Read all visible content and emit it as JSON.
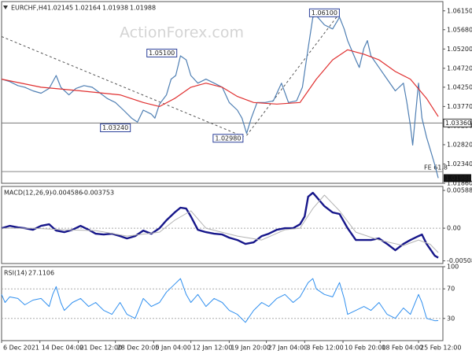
{
  "chart_data": [
    {
      "type": "line",
      "title": "EURCHF,H4",
      "header_values": [
        {
          "value": 1.02145,
          "label": "1.02145"
        },
        {
          "value": 1.02164,
          "label": "1.02164"
        },
        {
          "value": 1.01938,
          "label": "1.01938"
        },
        {
          "value": 1.01988,
          "label": "1.01988"
        }
      ],
      "watermark": "ActionForex.com",
      "xlim": [
        0,
        380
      ],
      "ylim": [
        1.0186,
        1.0638
      ],
      "yticks": [
        {
          "value": 1.0615,
          "label": "1.06150"
        },
        {
          "value": 1.0568,
          "label": "1.05680"
        },
        {
          "value": 1.052,
          "label": "1.05200"
        },
        {
          "value": 1.0472,
          "label": "1.04720"
        },
        {
          "value": 1.0425,
          "label": "1.04250"
        },
        {
          "value": 1.0377,
          "label": "1.03770"
        },
        {
          "value": 1.0329,
          "label": "1.03290"
        },
        {
          "value": 1.0282,
          "label": "1.02820"
        },
        {
          "value": 1.0234,
          "label": "1.02340"
        },
        {
          "value": 1.0186,
          "label": "1.01860"
        }
      ],
      "series": [
        {
          "color": "#4f7fb3",
          "width": 1.2,
          "x": [
            0,
            7,
            14,
            20,
            27,
            34,
            41,
            47,
            51,
            58,
            64,
            71,
            78,
            85,
            91,
            98,
            105,
            112,
            117,
            122,
            129,
            132,
            136,
            142,
            146,
            150,
            154,
            159,
            163,
            169,
            176,
            183,
            190,
            196,
            203,
            207,
            211,
            215,
            220,
            227,
            234,
            241,
            247,
            254,
            259,
            264,
            268,
            271,
            278,
            285,
            291,
            295,
            298,
            305,
            308,
            312,
            315,
            318,
            325,
            332,
            339,
            346,
            349,
            352,
            354,
            359,
            362,
            366,
            369,
            373,
            376
          ],
          "values": [
            1.0445,
            1.0439,
            1.0429,
            1.0425,
            1.0416,
            1.041,
            1.0422,
            1.0454,
            1.0425,
            1.0406,
            1.0422,
            1.0429,
            1.0425,
            1.041,
            1.0397,
            1.0387,
            1.0368,
            1.0348,
            1.0338,
            1.0368,
            1.0358,
            1.0348,
            1.0383,
            1.0406,
            1.0445,
            1.0454,
            1.0503,
            1.0493,
            1.0454,
            1.0435,
            1.0445,
            1.0435,
            1.0425,
            1.0387,
            1.0368,
            1.0348,
            1.031,
            1.0348,
            1.0387,
            1.0387,
            1.0391,
            1.0435,
            1.0387,
            1.0391,
            1.0425,
            1.0522,
            1.0599,
            1.0603,
            1.058,
            1.057,
            1.0599,
            1.057,
            1.0541,
            1.0493,
            1.0474,
            1.0522,
            1.0541,
            1.0503,
            1.0474,
            1.0445,
            1.0416,
            1.0435,
            1.0387,
            1.0329,
            1.0281,
            1.0435,
            1.0348,
            1.03,
            1.0271,
            1.0232,
            1.0199
          ]
        },
        {
          "color": "#e03030",
          "width": 1.2,
          "x": [
            0,
            34,
            68,
            102,
            122,
            136,
            149,
            163,
            176,
            190,
            203,
            217,
            237,
            257,
            271,
            285,
            298,
            312,
            325,
            339,
            352,
            366,
            376
          ],
          "values": [
            1.0445,
            1.0425,
            1.0416,
            1.0406,
            1.0387,
            1.0377,
            1.0397,
            1.0425,
            1.0435,
            1.0425,
            1.0402,
            1.0387,
            1.0383,
            1.0387,
            1.0445,
            1.0493,
            1.0518,
            1.0507,
            1.0493,
            1.0464,
            1.0445,
            1.0397,
            1.0352
          ]
        }
      ],
      "trendlines": [
        {
          "x": [
            0,
            210
          ],
          "values": [
            1.0551,
            1.03
          ]
        },
        {
          "x": [
            211,
            291
          ],
          "values": [
            1.0305,
            1.0609
          ]
        }
      ],
      "annotations": [
        {
          "x": 278,
          "value": 1.061,
          "label": "1.06100"
        },
        {
          "x": 138,
          "value": 1.051,
          "label": "1.05100"
        },
        {
          "x": 98,
          "value": 1.0324,
          "label": "1.03240"
        },
        {
          "x": 195,
          "value": 1.0298,
          "label": "1.02980"
        }
      ],
      "levels": [
        {
          "value": 1.0336,
          "label": "1.03360"
        }
      ],
      "fib_level": {
        "value": 1.0215,
        "text": "FE 61.8"
      },
      "current_price": {
        "value": 1.01988,
        "label": "1.01988"
      }
    },
    {
      "type": "line",
      "title": "MACD(12,26,9)",
      "header_values": [
        -0.004586,
        -0.003753
      ],
      "xlim": [
        0,
        380
      ],
      "ylim": [
        -0.0055,
        0.0065
      ],
      "yticks": [
        0.005882,
        {
          "value": 0,
          "label": "0.00"
        },
        -0.005085
      ],
      "levels": [
        0
      ],
      "series": [
        {
          "color": "#16168a",
          "width": 2.4,
          "x": [
            0,
            7,
            14,
            20,
            27,
            34,
            41,
            47,
            54,
            61,
            68,
            75,
            81,
            88,
            95,
            102,
            108,
            115,
            122,
            129,
            136,
            142,
            149,
            154,
            159,
            163,
            169,
            176,
            183,
            190,
            196,
            203,
            210,
            217,
            224,
            230,
            237,
            244,
            251,
            257,
            261,
            264,
            268,
            271,
            278,
            285,
            291,
            298,
            305,
            312,
            318,
            325,
            332,
            339,
            346,
            352,
            359,
            362,
            366,
            373,
            376
          ],
          "values": [
            0,
            0.00037,
            0.00012,
            0,
            -0.00025,
            0.00037,
            0.00061,
            -0.00037,
            -0.00061,
            -0.00025,
            0.00037,
            -0.00025,
            -0.00086,
            -0.00098,
            -0.00086,
            -0.00123,
            -0.00159,
            -0.00123,
            -0.00037,
            -0.00086,
            0,
            0.00123,
            0.00245,
            0.00319,
            0.00306,
            0.00184,
            -0.00025,
            -0.00061,
            -0.00086,
            -0.00098,
            -0.00147,
            -0.00184,
            -0.00245,
            -0.0022,
            -0.00123,
            -0.00086,
            -0.00025,
            0,
            0,
            0.00061,
            0.00184,
            0.0049,
            0.00551,
            0.0049,
            0.00343,
            0.00245,
            0.00221,
            0,
            -0.00184,
            -0.00184,
            -0.00184,
            -0.00159,
            -0.00245,
            -0.00343,
            -0.00245,
            -0.00184,
            -0.00123,
            -0.00098,
            -0.00245,
            -0.00429,
            -0.0046
          ]
        },
        {
          "color": "#b4b4b4",
          "width": 1,
          "x": [
            0,
            27,
            54,
            81,
            108,
            136,
            149,
            163,
            176,
            203,
            224,
            244,
            257,
            268,
            278,
            291,
            305,
            325,
            346,
            359,
            369,
            376
          ],
          "values": [
            0,
            0,
            -0.00025,
            -0.00037,
            -0.00123,
            -0.00061,
            0.00123,
            0.0027,
            0,
            -0.00123,
            -0.00184,
            -0.00025,
            0,
            0.00306,
            0.00515,
            0.0027,
            -0.00061,
            -0.00184,
            -0.0027,
            -0.00184,
            -0.0025,
            -0.0038
          ]
        }
      ]
    },
    {
      "type": "line",
      "title": "RSI(14)",
      "header_values": [
        27.1106
      ],
      "xlim": [
        0,
        380
      ],
      "ylim": [
        0,
        100
      ],
      "yticks": [
        100,
        70,
        30
      ],
      "levels": [
        70,
        30
      ],
      "xticks": [
        {
          "value": 0,
          "label": "6 Dec 2021"
        },
        {
          "value": 33,
          "label": "14 Dec 04:00"
        },
        {
          "value": 66,
          "label": "21 Dec 12:00"
        },
        {
          "value": 98,
          "label": "28 Dec 20:00"
        },
        {
          "value": 131,
          "label": "5 Jan 04:00"
        },
        {
          "value": 163,
          "label": "12 Jan 12:00"
        },
        {
          "value": 196,
          "label": "19 Jan 20:00"
        },
        {
          "value": 228,
          "label": "27 Jan 04:00"
        },
        {
          "value": 261,
          "label": "3 Feb 12:00"
        },
        {
          "value": 294,
          "label": "10 Feb 20:00"
        },
        {
          "value": 326,
          "label": "18 Feb 04:00"
        },
        {
          "value": 359,
          "label": "25 Feb 12:00"
        }
      ],
      "series": [
        {
          "color": "#2f8fef",
          "width": 1,
          "x": [
            0,
            3,
            7,
            14,
            20,
            27,
            34,
            41,
            44,
            47,
            51,
            54,
            61,
            68,
            75,
            81,
            88,
            95,
            102,
            108,
            115,
            122,
            129,
            136,
            142,
            149,
            154,
            159,
            163,
            169,
            176,
            183,
            190,
            196,
            203,
            210,
            217,
            224,
            230,
            237,
            244,
            251,
            257,
            264,
            268,
            271,
            278,
            285,
            291,
            295,
            298,
            305,
            312,
            318,
            325,
            332,
            339,
            346,
            352,
            359,
            362,
            366,
            373,
            376
          ],
          "values": [
            62.4,
            51.6,
            59.1,
            57,
            48.4,
            54.8,
            57,
            46.2,
            62.4,
            73.1,
            51.6,
            40.9,
            51.6,
            57,
            46.2,
            51.6,
            40.9,
            35.5,
            51.6,
            35.5,
            30.1,
            57,
            46.2,
            51.6,
            65.6,
            76.3,
            83.9,
            62.4,
            51.6,
            62.4,
            46.2,
            57,
            51.6,
            40.9,
            35.5,
            24.7,
            40.9,
            51.6,
            46.2,
            57,
            62.4,
            51.6,
            59.1,
            78.5,
            83.9,
            69.9,
            62.4,
            59.1,
            78.5,
            57,
            35.5,
            40.9,
            46.2,
            40.9,
            51.6,
            35.5,
            30.1,
            44.1,
            35.5,
            62.4,
            51.6,
            30.1,
            26.9,
            27.1
          ]
        }
      ]
    }
  ]
}
